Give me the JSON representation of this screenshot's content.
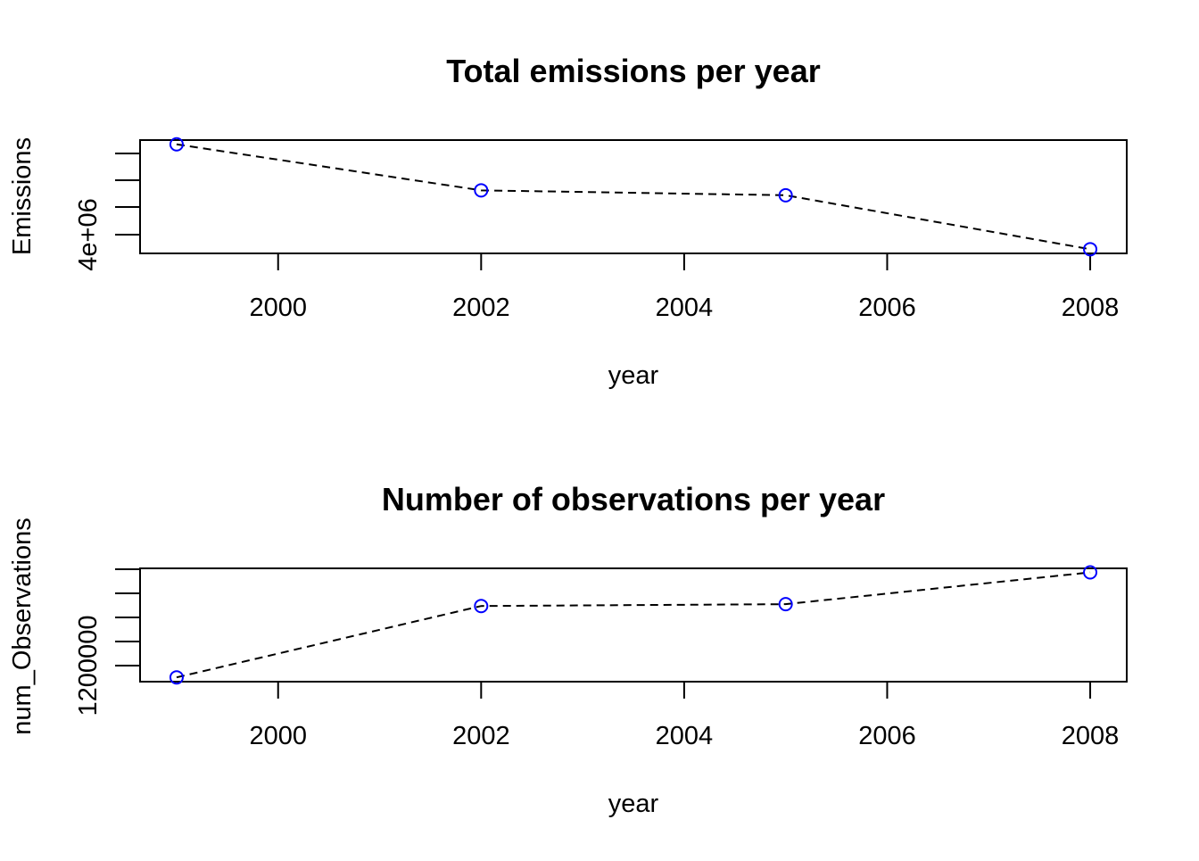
{
  "chart_data": [
    {
      "type": "line",
      "title": "Total emissions per year",
      "xlabel": "year",
      "ylabel": "Emissions",
      "x": [
        1999,
        2002,
        2005,
        2008
      ],
      "values": [
        7332967,
        5635780,
        5454703,
        3464206
      ],
      "xticks": [
        "2000",
        "2002",
        "2004",
        "2006",
        "2008"
      ],
      "yticks_labeled": [
        "4e+06"
      ],
      "xlim": [
        1998.64,
        2008.36
      ],
      "ylim": [
        3310000,
        7490000
      ],
      "line_style": "dashed",
      "marker": "open-circle",
      "colors": {
        "points": "#0000ff",
        "line": "#000000"
      }
    },
    {
      "type": "line",
      "title": "Number of observations per year",
      "xlabel": "year",
      "ylabel": "num_Observations",
      "x": [
        1999,
        2002,
        2005,
        2008
      ],
      "values": [
        1108469,
        1698677,
        1713850,
        1976655
      ],
      "xticks": [
        "2000",
        "2002",
        "2004",
        "2006",
        "2008"
      ],
      "yticks_labeled": [
        "1200000"
      ],
      "xlim": [
        1998.64,
        2008.36
      ],
      "ylim": [
        1073000,
        2010000
      ],
      "line_style": "dashed",
      "marker": "open-circle",
      "colors": {
        "points": "#0000ff",
        "line": "#000000"
      }
    }
  ]
}
